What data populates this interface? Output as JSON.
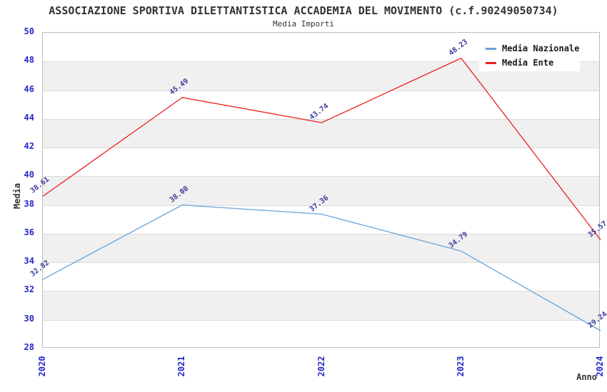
{
  "chart_data": {
    "type": "line",
    "title": "ASSOCIAZIONE SPORTIVA DILETTANTISTICA ACCADEMIA DEL MOVIMENTO (c.f.90249050734)",
    "subtitle": "Media Importi",
    "xlabel": "Anno",
    "ylabel": "Media",
    "categories": [
      "2020",
      "2021",
      "2022",
      "2023",
      "2024"
    ],
    "series": [
      {
        "name": "Media Nazionale",
        "color": "#69a3d9",
        "values": [
          32.82,
          38.0,
          37.36,
          34.79,
          29.24
        ]
      },
      {
        "name": "Media Ente",
        "color": "#ee2020",
        "values": [
          38.61,
          45.49,
          43.74,
          48.23,
          35.57
        ]
      }
    ],
    "ylim": [
      28,
      50
    ],
    "ytick_step": 2,
    "grid": "horizontal-bands-every-2-units",
    "legend_position": "top-right"
  },
  "colors": {
    "tick_label": "#2525cc",
    "data_label": "#3a3a99",
    "band_gray": "#f0f0f0",
    "gridline": "#dcdcdc",
    "axis_border": "#bcbcbc",
    "heading_text": "#333333",
    "legend_text": "#1a1a1a",
    "background": "#ffffff"
  }
}
